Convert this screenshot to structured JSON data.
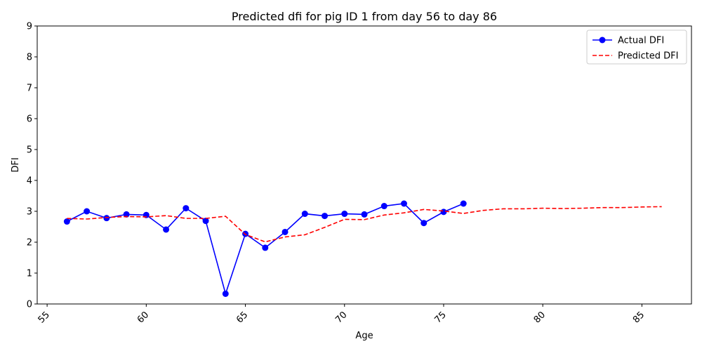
{
  "chart_data": {
    "type": "line",
    "title": "Predicted dfi for pig ID 1 from day 56 to day 86",
    "xlabel": "Age",
    "ylabel": "DFI",
    "xlim": [
      54.5,
      87.5
    ],
    "ylim": [
      0,
      9
    ],
    "xticks": [
      55,
      60,
      65,
      70,
      75,
      80,
      85
    ],
    "yticks": [
      0,
      1,
      2,
      3,
      4,
      5,
      6,
      7,
      8,
      9
    ],
    "xtick_rotation": -45,
    "grid": false,
    "legend_position": "top-right",
    "series": [
      {
        "name": "Actual DFI",
        "style": "solid-with-markers",
        "color": "#0000ff",
        "x": [
          56,
          57,
          58,
          59,
          60,
          61,
          62,
          63,
          64,
          65,
          66,
          67,
          68,
          69,
          70,
          71,
          72,
          73,
          74,
          75,
          76
        ],
        "y": [
          2.67,
          3.0,
          2.78,
          2.9,
          2.88,
          2.41,
          3.1,
          2.69,
          0.33,
          2.27,
          1.82,
          2.33,
          2.92,
          2.85,
          2.92,
          2.9,
          3.17,
          3.25,
          2.62,
          2.98,
          3.25
        ]
      },
      {
        "name": "Predicted DFI",
        "style": "dashed",
        "color": "#ff0000",
        "x": [
          56,
          57,
          58,
          59,
          60,
          61,
          62,
          63,
          64,
          65,
          66,
          67,
          68,
          69,
          70,
          71,
          72,
          73,
          74,
          75,
          76,
          77,
          78,
          79,
          80,
          81,
          82,
          83,
          84,
          85,
          86
        ],
        "y": [
          2.77,
          2.75,
          2.8,
          2.83,
          2.82,
          2.86,
          2.77,
          2.77,
          2.84,
          2.25,
          2.01,
          2.17,
          2.24,
          2.48,
          2.74,
          2.73,
          2.88,
          2.95,
          3.06,
          3.01,
          2.93,
          3.03,
          3.08,
          3.08,
          3.1,
          3.09,
          3.1,
          3.12,
          3.12,
          3.14,
          3.15
        ]
      }
    ]
  }
}
